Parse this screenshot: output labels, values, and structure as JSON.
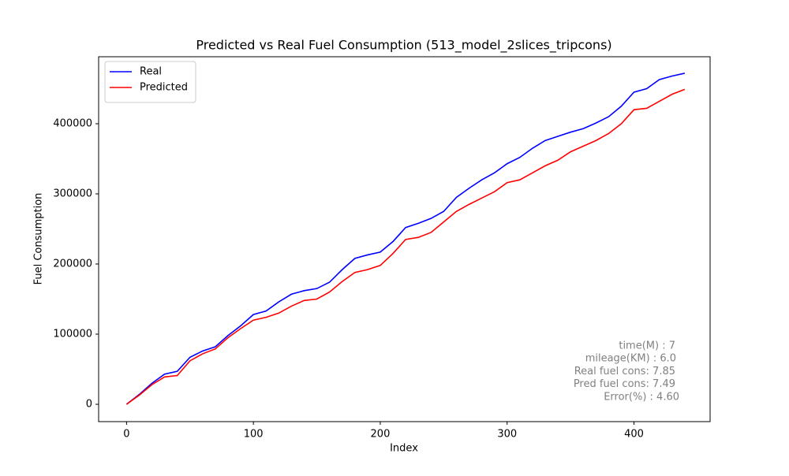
{
  "chart_data": {
    "type": "line",
    "title": "Predicted vs Real Fuel Consumption (513_model_2slices_tripcons)",
    "x_label": "Index",
    "y_label": "Fuel Consumption",
    "x": [
      0,
      10,
      20,
      30,
      40,
      50,
      60,
      70,
      80,
      90,
      100,
      110,
      120,
      130,
      140,
      150,
      160,
      170,
      180,
      190,
      200,
      210,
      220,
      230,
      240,
      250,
      260,
      270,
      280,
      290,
      300,
      310,
      320,
      330,
      340,
      350,
      360,
      370,
      380,
      390,
      400,
      410,
      420,
      430,
      440
    ],
    "series": [
      {
        "name": "Real",
        "color": "#0000ff",
        "values": [
          0,
          14000,
          30000,
          43000,
          47000,
          67000,
          76000,
          82000,
          98000,
          112000,
          128000,
          133000,
          146000,
          157000,
          162000,
          165000,
          174000,
          192000,
          208000,
          213000,
          217000,
          232000,
          252000,
          258000,
          265000,
          275000,
          295000,
          308000,
          320000,
          330000,
          343000,
          352000,
          365000,
          376000,
          382000,
          388000,
          393000,
          401000,
          410000,
          425000,
          445000,
          450000,
          463000,
          468000,
          472000
        ]
      },
      {
        "name": "Predicted",
        "color": "#ff0000",
        "values": [
          0,
          13000,
          28000,
          39000,
          41000,
          62000,
          72000,
          79000,
          95000,
          108000,
          120000,
          124000,
          130000,
          140000,
          148000,
          150000,
          160000,
          175000,
          188000,
          192000,
          198000,
          215000,
          235000,
          238000,
          245000,
          260000,
          275000,
          285000,
          294000,
          303000,
          316000,
          320000,
          330000,
          340000,
          348000,
          360000,
          368000,
          376000,
          386000,
          400000,
          420000,
          422000,
          432000,
          442000,
          449000
        ]
      }
    ],
    "xlim": [
      -22,
      460
    ],
    "xticks": [
      0,
      100,
      200,
      300,
      400
    ],
    "ylim": [
      -24700,
      495500
    ],
    "yticks": [
      0,
      100000,
      200000,
      300000,
      400000
    ],
    "grid": false,
    "legend": "upper left",
    "annotations": [
      "time(M) : 7",
      "mileage(KM) : 6.0",
      "Real fuel cons: 7.85",
      "Pred fuel cons: 7.49",
      "Error(%) : 4.60"
    ]
  }
}
